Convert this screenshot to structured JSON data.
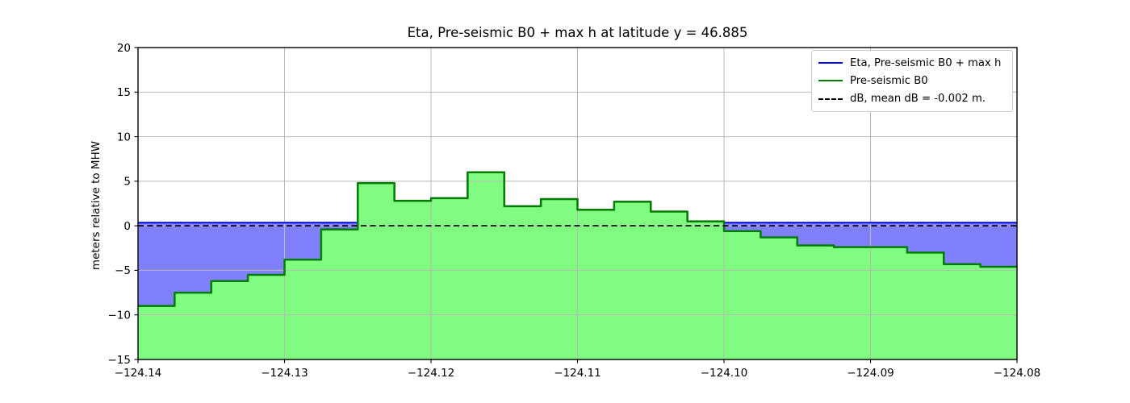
{
  "chart_data": {
    "type": "area",
    "title": "Eta, Pre-seismic B0 + max h at latitude y = 46.885",
    "ylabel": "meters relative to MHW",
    "xlabel": "",
    "xlim": [
      -124.14,
      -124.08
    ],
    "ylim": [
      -15,
      20
    ],
    "grid": true,
    "legend_position": "upper right",
    "x_start": -124.14,
    "cell_width_deg": 0.0025,
    "b0_step_values": [
      -9.0,
      -7.5,
      -6.2,
      -5.5,
      -3.8,
      -0.4,
      4.8,
      2.8,
      3.1,
      6.0,
      2.2,
      3.0,
      1.8,
      2.7,
      1.6,
      0.5,
      -0.6,
      -1.3,
      -2.2,
      -2.4,
      -2.4,
      -3.0,
      -4.3,
      -4.6
    ],
    "eta_level": 0.35,
    "dB_line_level": 0,
    "dB_mean": -0.002,
    "xticks": [
      -124.14,
      -124.13,
      -124.12,
      -124.11,
      -124.1,
      -124.09,
      -124.08
    ],
    "xtick_labels": [
      "−124.14",
      "−124.13",
      "−124.12",
      "−124.11",
      "−124.10",
      "−124.09",
      "−124.08"
    ],
    "yticks": [
      20,
      15,
      10,
      5,
      0,
      -5,
      -10,
      -15
    ],
    "ytick_labels": [
      "20",
      "15",
      "10",
      "5",
      "0",
      "−5",
      "−10",
      "−15"
    ],
    "series": [
      {
        "name": "Eta, Pre-seismic B0 + max h",
        "color": "#0000ff",
        "style": "solid"
      },
      {
        "name": "Pre-seismic B0",
        "color": "#007d00",
        "style": "solid"
      },
      {
        "name": "dB, mean dB = -0.002 m.",
        "color": "#000000",
        "style": "dashed"
      }
    ],
    "colors": {
      "water_fill": "#8080fd",
      "land_fill": "#80fd80",
      "eta_line": "#0000ff",
      "b0_line": "#007d00",
      "db_line": "#000000",
      "grid": "#b8b8b8",
      "spine": "#000000",
      "legend_border": "#cccccc"
    }
  }
}
